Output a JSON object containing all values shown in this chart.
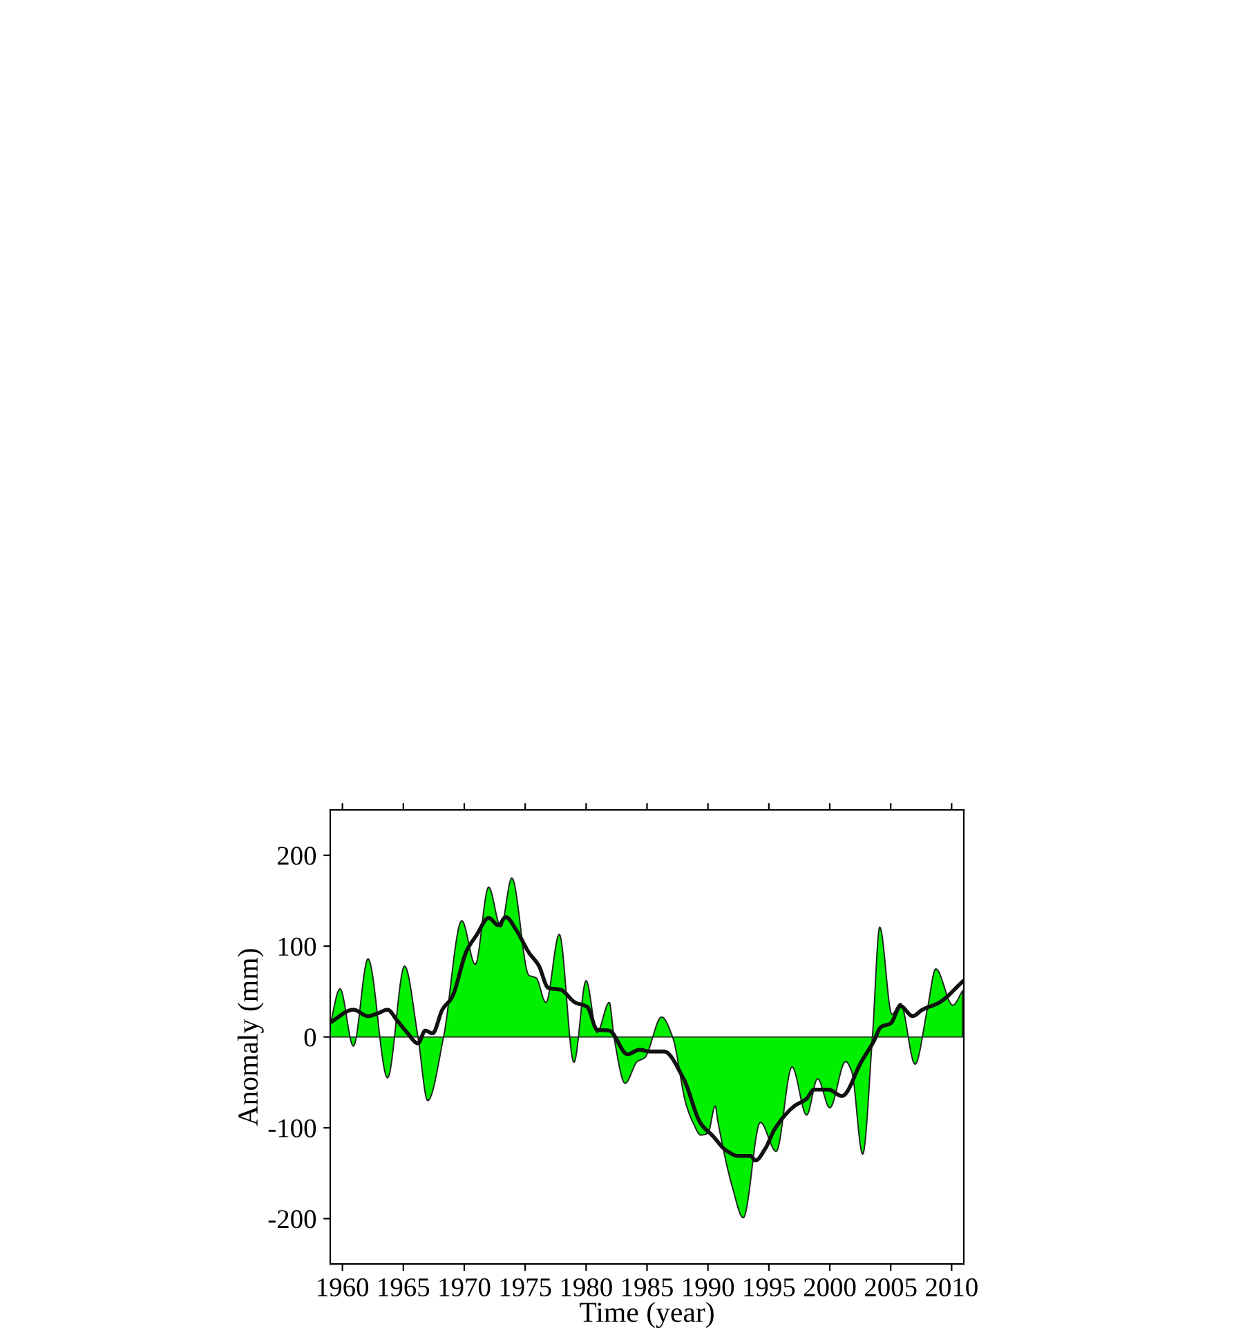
{
  "chart_data": {
    "type": "area",
    "xlabel": "Time (year)",
    "ylabel": "Anomaly (mm)",
    "xlim": [
      1959,
      2011
    ],
    "xticks": [
      1960,
      1965,
      1970,
      1975,
      1980,
      1985,
      1990,
      1995,
      2000,
      2005,
      2010
    ],
    "ylim": [
      -250,
      250
    ],
    "yticks": [
      -200,
      -100,
      0,
      100,
      200
    ],
    "grid": false,
    "legend": false,
    "series": [
      {
        "color": "#00f000",
        "x": [
          1959,
          1959.8,
          1960.9,
          1962.1,
          1963.7,
          1965.1,
          1966.2,
          1967.0,
          1968.3,
          1969.8,
          1970.9,
          1972.0,
          1973.0,
          1973.9,
          1975.3,
          1975.9,
          1976.7,
          1977.8,
          1979.0,
          1980.0,
          1980.9,
          1981.9,
          1982.3,
          1983.2,
          1984.2,
          1984.8,
          1986.2,
          1987.1,
          1988.2,
          1988.8,
          1989.4,
          1990.0,
          1990.6,
          1990.8,
          1992.0,
          1992.9,
          1994.3,
          1995.6,
          1996.9,
          1998.1,
          1999.0,
          2000.0,
          2001.3,
          2001.8,
          2002.7,
          2003.5,
          2004.1,
          2005.1,
          2005.8,
          2007.0,
          2008.0,
          2008.7,
          2010.1,
          2010.9
        ],
        "values": [
          14,
          53,
          -10,
          86,
          -45,
          78,
          0,
          -70,
          0,
          128,
          80,
          165,
          121,
          175,
          68,
          65,
          38,
          113,
          -28,
          62,
          5,
          38,
          -1,
          -51,
          -27,
          -23,
          22,
          0,
          -74,
          -95,
          -108,
          -106,
          -76,
          -92,
          -165,
          -199,
          -94,
          -126,
          -33,
          -86,
          -46,
          -78,
          -27,
          -38,
          -129,
          0,
          121,
          25,
          37,
          -30,
          30,
          75,
          35,
          51
        ]
      },
      {
        "type": "line",
        "color": "#111111",
        "x": [
          1959,
          1960.9,
          1962.1,
          1962.9,
          1963.7,
          1964.5,
          1965.3,
          1966.2,
          1966.8,
          1967.4,
          1968.2,
          1969.0,
          1970.2,
          1971.0,
          1972.0,
          1972.8,
          1973.4,
          1974.3,
          1975.3,
          1976.1,
          1976.9,
          1977.9,
          1979.1,
          1980.1,
          1980.9,
          1981.9,
          1983.4,
          1984.4,
          1985.2,
          1986.4,
          1988.0,
          1989.4,
          1990.4,
          1991.5,
          1992.5,
          1993.5,
          1993.9,
          1994.7,
          1995.5,
          1997.1,
          1998.1,
          1998.7,
          1999.9,
          2001.0,
          2002.6,
          2003.6,
          2004.2,
          2005.0,
          2005.8,
          2006.8,
          2007.6,
          2009.0,
          2010.9
        ],
        "values": [
          16,
          30,
          23,
          26,
          30,
          18,
          5,
          -7,
          7,
          4,
          30,
          44,
          95,
          112,
          131,
          123,
          132,
          117,
          93,
          79,
          54,
          52,
          38,
          33,
          8,
          7,
          -19,
          -14,
          -16,
          -16,
          -46,
          -95,
          -109,
          -125,
          -131,
          -131,
          -136,
          -123,
          -101,
          -76,
          -68,
          -58,
          -58,
          -65,
          -27,
          -5,
          11,
          15,
          34,
          23,
          30,
          38,
          61
        ]
      }
    ]
  }
}
